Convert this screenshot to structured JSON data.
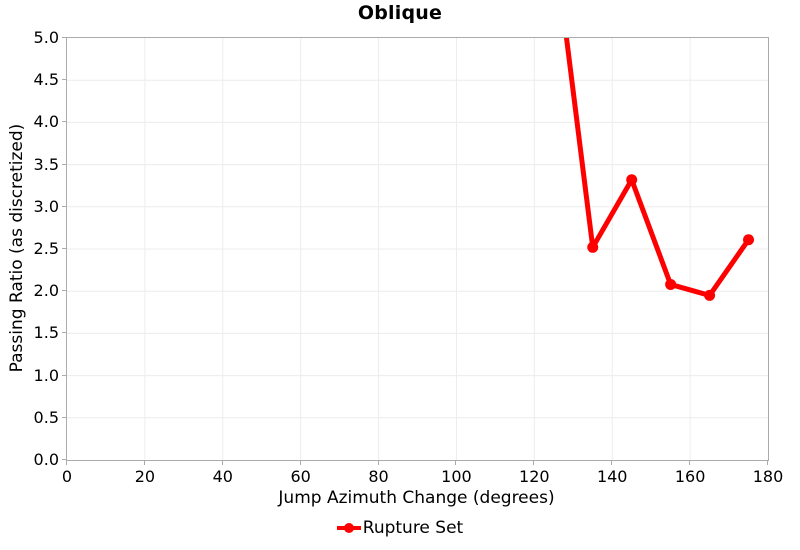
{
  "colors": {
    "series": "#ff0000",
    "frame": "#ababab",
    "grid": "#ececec",
    "text": "#000000",
    "background": "#ffffff"
  },
  "chart_data": {
    "type": "line",
    "title": "Oblique",
    "xlabel": "Jump Azimuth Change (degrees)",
    "ylabel": "Passing Ratio (as discretized)",
    "xlim": [
      0,
      180
    ],
    "ylim": [
      0,
      5
    ],
    "x_ticks": [
      "0",
      "20",
      "40",
      "60",
      "80",
      "100",
      "120",
      "140",
      "160",
      "180"
    ],
    "y_ticks": [
      "0.0",
      "0.5",
      "1.0",
      "1.5",
      "2.0",
      "2.5",
      "3.0",
      "3.5",
      "4.0",
      "4.5",
      "5.0"
    ],
    "grid": true,
    "legend_position": "bottom",
    "series": [
      {
        "name": "Rupture Set",
        "color": "#ff0000",
        "x": [
          125,
          135,
          145,
          155,
          165,
          175
        ],
        "y": [
          6.2,
          2.52,
          3.32,
          2.08,
          1.95,
          2.61
        ],
        "note": "point at x=125 lies above the y-axis maximum; its segment is clipped at the top of the plot"
      }
    ]
  },
  "legend": {
    "items": [
      {
        "label": "Rupture Set",
        "color": "#ff0000"
      }
    ]
  }
}
